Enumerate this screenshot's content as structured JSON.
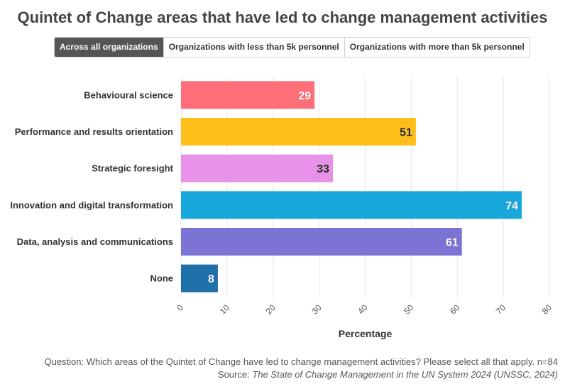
{
  "title": "Quintet of Change areas that have led to change management activities",
  "tabs": [
    {
      "label": "Across all organizations",
      "active": true
    },
    {
      "label": "Organizations with less than 5k personnel",
      "active": false
    },
    {
      "label": "Organizations with more than 5k personnel",
      "active": false
    }
  ],
  "footer": {
    "question": "Question: Which areas of the Quintet of Change have led to change management activities? Please select all that apply. n=84",
    "source_prefix": "Source: ",
    "source_title": "The State of Change Management in the UN System 2024 (UNSSC, 2024)"
  },
  "chart_data": {
    "type": "bar",
    "orientation": "horizontal",
    "categories": [
      "Behavioural science",
      "Performance and results orientation",
      "Strategic foresight",
      "Innovation and digital transformation",
      "Data, analysis and communications",
      "None"
    ],
    "values": [
      29,
      51,
      33,
      74,
      61,
      8
    ],
    "colors": [
      "#ff6f7a",
      "#ffbe1a",
      "#e891e8",
      "#1aa7dc",
      "#7b74d4",
      "#1f6fa8"
    ],
    "label_colors": [
      "#ffffff",
      "#222222",
      "#222222",
      "#ffffff",
      "#ffffff",
      "#ffffff"
    ],
    "xlabel": "Percentage",
    "ylabel": "",
    "xlim": [
      0,
      80
    ],
    "xticks": [
      0,
      10,
      20,
      30,
      40,
      50,
      60,
      70,
      80
    ],
    "grid": true
  }
}
